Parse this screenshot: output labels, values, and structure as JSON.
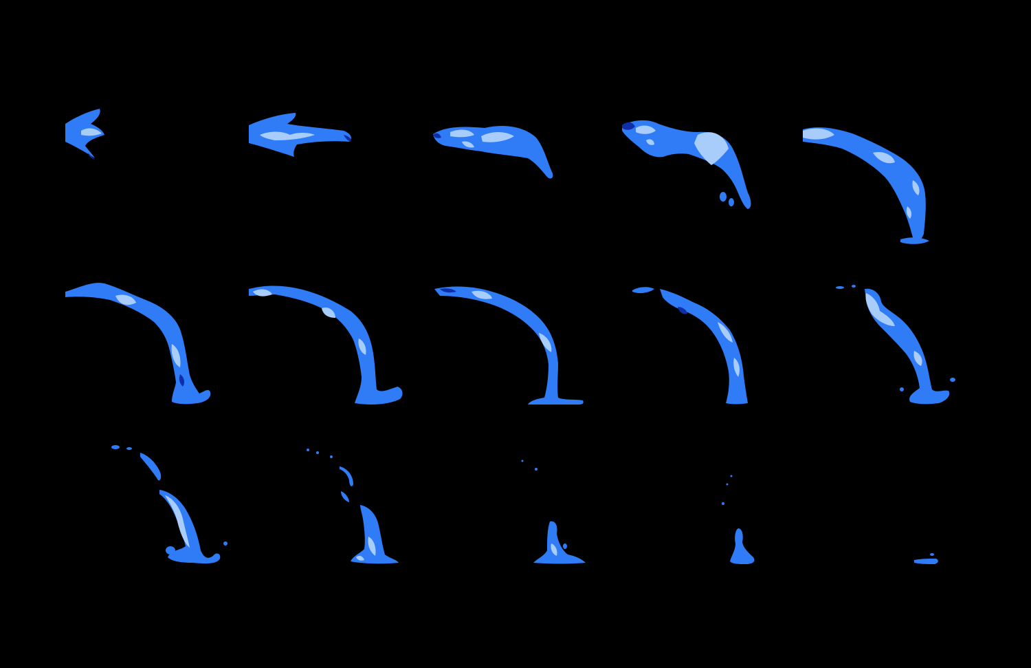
{
  "sprite_sheet": {
    "background_color": "#000000",
    "colors": {
      "water_base": "#2f7cf6",
      "water_highlight": "#a9cdfb",
      "water_shadow": "#0f2fa8"
    },
    "rows": 3,
    "columns": 5,
    "frame_count": 15,
    "frames": [
      {
        "id": 1,
        "shape": "water-jet-emerging"
      },
      {
        "id": 2,
        "shape": "water-jet-extending"
      },
      {
        "id": 3,
        "shape": "water-jet-beginning-arc"
      },
      {
        "id": 4,
        "shape": "water-jet-arc-dripping"
      },
      {
        "id": 5,
        "shape": "water-stream-touching-ground"
      },
      {
        "id": 6,
        "shape": "water-stream-splash"
      },
      {
        "id": 7,
        "shape": "water-stream-splash"
      },
      {
        "id": 8,
        "shape": "water-stream-full-arc"
      },
      {
        "id": 9,
        "shape": "water-stream-thinning"
      },
      {
        "id": 10,
        "shape": "water-stream-breaking-up"
      },
      {
        "id": 11,
        "shape": "water-droplets-falling"
      },
      {
        "id": 12,
        "shape": "water-droplets-scattered"
      },
      {
        "id": 13,
        "shape": "water-splash-small"
      },
      {
        "id": 14,
        "shape": "water-splash-smaller"
      },
      {
        "id": 15,
        "shape": "water-puddle-remnant"
      }
    ]
  }
}
